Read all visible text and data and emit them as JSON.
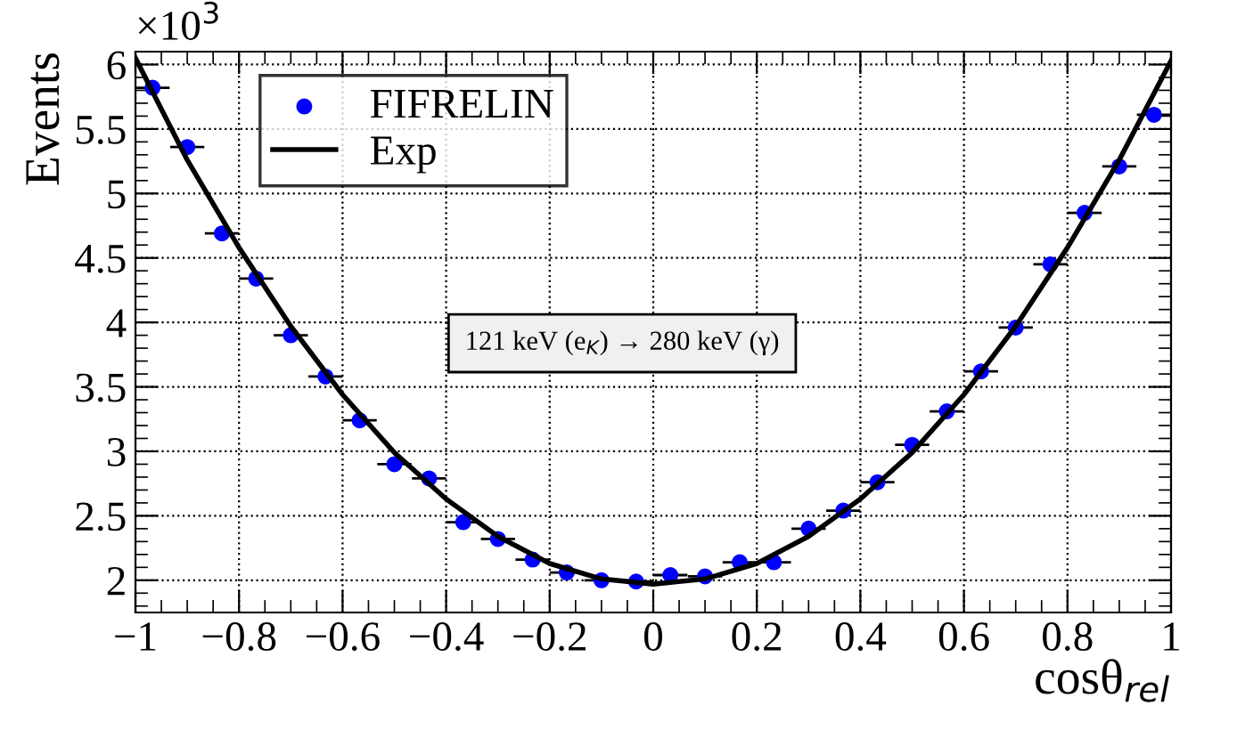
{
  "chart_data": {
    "type": "scatter",
    "xlabel": "cosθ$_{rel}$",
    "ylabel": "Events",
    "annotations": [
      "×10$^{3}$",
      "121 keV (e$_{K}$) → 280 keV (γ)"
    ],
    "xlim": [
      -1,
      1
    ],
    "xticks": [
      {
        "value": -1,
        "label": "−1"
      },
      {
        "value": -0.8,
        "label": "−0.8"
      },
      {
        "value": -0.6,
        "label": "−0.6"
      },
      {
        "value": -0.4,
        "label": "−0.4"
      },
      {
        "value": -0.2,
        "label": "−0.2"
      },
      0,
      0.2,
      0.4,
      0.6,
      0.8,
      1
    ],
    "ylim": [
      1.75,
      6.1
    ],
    "yticks": [
      2,
      2.5,
      3,
      3.5,
      4,
      4.5,
      5,
      5.5,
      6
    ],
    "grid": true,
    "legend": "top left",
    "series": [
      {
        "name": "FIFRELIN",
        "color": "#0000ff",
        "marker": "circle",
        "x": [
          -0.967,
          -0.9,
          -0.833,
          -0.767,
          -0.7,
          -0.633,
          -0.567,
          -0.5,
          -0.433,
          -0.367,
          -0.3,
          -0.233,
          -0.167,
          -0.1,
          -0.033,
          0.033,
          0.1,
          0.167,
          0.233,
          0.3,
          0.367,
          0.433,
          0.5,
          0.567,
          0.633,
          0.7,
          0.767,
          0.833,
          0.9,
          0.967
        ],
        "values": [
          5.82,
          5.36,
          4.69,
          4.34,
          3.9,
          3.58,
          3.24,
          2.9,
          2.79,
          2.45,
          2.32,
          2.16,
          2.06,
          2.0,
          1.99,
          2.04,
          2.03,
          2.14,
          2.14,
          2.4,
          2.54,
          2.76,
          3.05,
          3.31,
          3.62,
          3.96,
          4.45,
          4.85,
          5.21,
          5.61
        ],
        "xerrors": [
          0.033,
          0.033,
          0.033,
          0.033,
          0.033,
          0.033,
          0.033,
          0.033,
          0.033,
          0.033,
          0.033,
          0.033,
          0.033,
          0.033,
          0.033,
          0.033,
          0.033,
          0.033,
          0.033,
          0.033,
          0.033,
          0.033,
          0.033,
          0.033,
          0.033,
          0.033,
          0.033,
          0.033,
          0.033,
          0.033
        ]
      },
      {
        "name": "Exp",
        "type": "line",
        "color": "#000000",
        "marker": "none",
        "line_style": "solid",
        "x": [
          -1,
          -0.9,
          -0.8,
          -0.7,
          -0.6,
          -0.5,
          -0.4,
          -0.3,
          -0.2,
          -0.1,
          0,
          0.1,
          0.2,
          0.3,
          0.4,
          0.5,
          0.6,
          0.7,
          0.8,
          0.9,
          1
        ],
        "values": [
          6.05,
          5.26,
          4.58,
          3.97,
          3.44,
          2.99,
          2.63,
          2.34,
          2.13,
          2.01,
          1.97,
          2.01,
          2.13,
          2.34,
          2.63,
          2.99,
          3.44,
          3.97,
          4.58,
          5.26,
          6.03
        ]
      }
    ]
  }
}
